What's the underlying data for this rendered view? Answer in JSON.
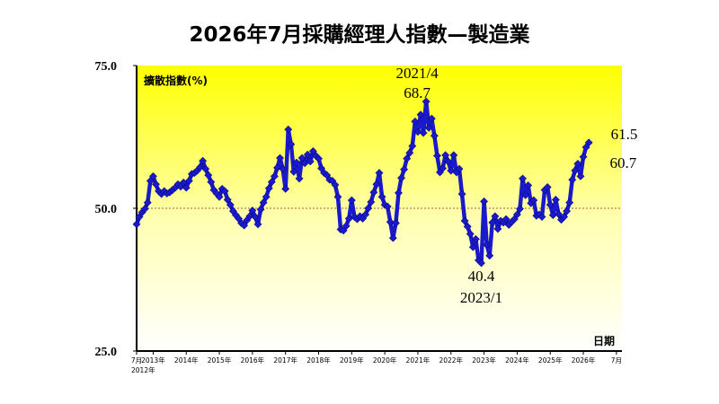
{
  "chart_data": {
    "type": "line",
    "title": "2026年7月採購經理人指數—製造業",
    "ylabel": "擴散指數(%)",
    "xlabel": "日期",
    "ylim": [
      25.0,
      75.0
    ],
    "yticks": [
      "75.0",
      "50.0",
      "25.0"
    ],
    "reference_line": 50.0,
    "x_ticks": [
      {
        "label": "7月",
        "month": 0
      },
      {
        "label": "2013年",
        "month": 6
      },
      {
        "label": "2014年",
        "month": 18
      },
      {
        "label": "2015年",
        "month": 30
      },
      {
        "label": "2016年",
        "month": 42
      },
      {
        "label": "2017年",
        "month": 54
      },
      {
        "label": "2018年",
        "month": 66
      },
      {
        "label": "2019年",
        "month": 78
      },
      {
        "label": "2020年",
        "month": 90
      },
      {
        "label": "2021年",
        "month": 102
      },
      {
        "label": "2022年",
        "month": 114
      },
      {
        "label": "2023年",
        "month": 126
      },
      {
        "label": "2024年",
        "month": 138
      },
      {
        "label": "2025年",
        "month": 150
      },
      {
        "label": "2026年",
        "month": 162
      },
      {
        "label": "7月",
        "month": 174
      }
    ],
    "x_start_label": "2012年",
    "x_range": [
      0,
      176
    ],
    "series": [
      {
        "color": "#1a1acc",
        "marker": "diamond",
        "values": [
          47.2,
          48.5,
          49.3,
          49.9,
          51.0,
          54.8,
          55.6,
          54.2,
          53.0,
          52.5,
          53.0,
          52.6,
          52.8,
          53.2,
          53.6,
          54.2,
          53.8,
          54.5,
          53.6,
          54.8,
          56.0,
          56.2,
          56.6,
          57.2,
          58.3,
          56.9,
          55.8,
          54.6,
          53.2,
          52.6,
          52.0,
          53.4,
          53.0,
          51.5,
          50.6,
          49.5,
          48.8,
          48.2,
          47.4,
          47.0,
          47.9,
          48.6,
          49.6,
          48.5,
          47.2,
          49.8,
          51.0,
          52.0,
          53.5,
          54.6,
          55.6,
          57.1,
          58.8,
          56.9,
          53.4,
          63.8,
          61.2,
          56.4,
          58.0,
          55.2,
          58.8,
          57.9,
          59.4,
          58.2,
          60.0,
          59.2,
          58.7,
          57.0,
          56.2,
          55.8,
          55.0,
          54.8,
          54.1,
          52.0,
          46.3,
          46.1,
          46.9,
          48.2,
          51.4,
          48.5,
          48.1,
          48.6,
          48.2,
          48.9,
          50.0,
          51.1,
          52.8,
          54.2,
          56.2,
          52.0,
          50.6,
          50.3,
          47.6,
          44.8,
          47.4,
          52.7,
          55.3,
          56.8,
          58.7,
          59.7,
          60.9,
          65.2,
          63.4,
          66.4,
          63.2,
          68.7,
          64.1,
          65.7,
          62.7,
          59.2,
          56.3,
          57.0,
          59.3,
          58.2,
          56.6,
          59.3,
          56.3,
          56.9,
          52.5,
          47.8,
          46.8,
          45.5,
          43.2,
          44.6,
          40.9,
          40.4,
          51.2,
          43.6,
          41.7,
          47.5,
          48.6,
          46.4,
          47.8,
          47.5,
          48.1,
          47.1,
          47.6,
          48.1,
          48.9,
          49.9,
          55.2,
          52.3,
          54.0,
          50.9,
          51.4,
          48.7,
          48.9,
          48.5,
          53.2,
          53.7,
          50.6,
          48.8,
          51.5,
          49.0,
          48.0,
          48.5,
          49.5,
          51.0,
          55.0,
          56.6,
          57.8,
          55.6,
          59.0,
          60.7,
          61.5
        ]
      }
    ],
    "annotations": [
      {
        "text": "2021/4",
        "month": 105,
        "value": 68.7,
        "position": "above-label"
      },
      {
        "text": "68.7",
        "month": 105,
        "value": 68.7,
        "position": "above-value"
      },
      {
        "text": "40.4",
        "month": 125,
        "value": 40.4,
        "position": "below-value"
      },
      {
        "text": "2023/1",
        "month": 125,
        "value": 40.4,
        "position": "below-label"
      },
      {
        "text": "61.5",
        "month": 170,
        "value": 61.5,
        "position": "right-upper"
      },
      {
        "text": "60.7",
        "month": 169,
        "value": 60.7,
        "position": "right-lower"
      }
    ],
    "grid": false,
    "legend": "none",
    "background": "yellow-to-white gradient"
  }
}
